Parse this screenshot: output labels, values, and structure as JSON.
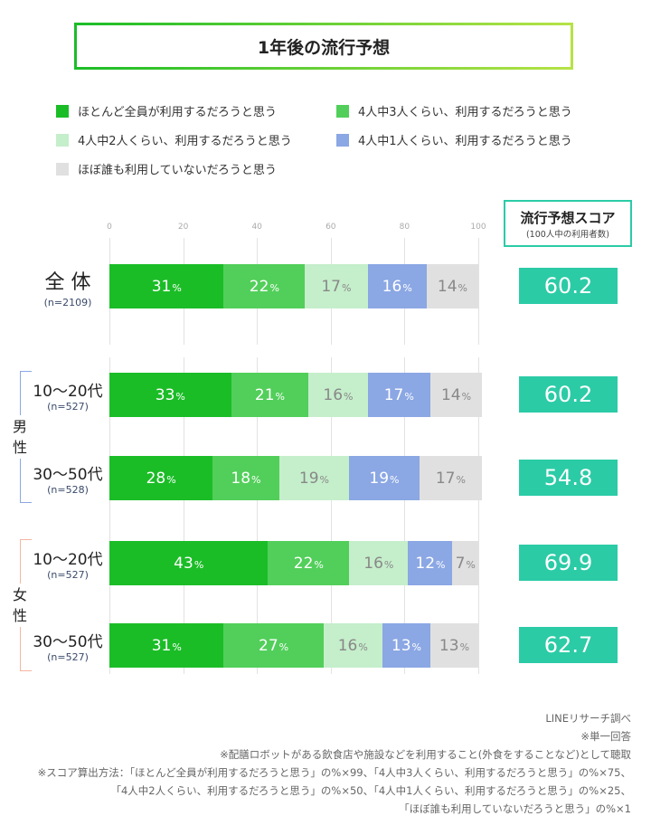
{
  "chart_data": {
    "type": "bar",
    "stacked": true,
    "orientation": "horizontal",
    "title": "1年後の流行予想",
    "xlim": [
      0,
      100
    ],
    "xticks": [
      0,
      20,
      40,
      60,
      80,
      100
    ],
    "grid": true,
    "legend_position": "top",
    "value_suffix": "%",
    "series": [
      {
        "name": "ほとんど全員が利用するだろうと思う",
        "color": "#1bbd27",
        "text_color": "#ffffff",
        "values": [
          31,
          33,
          28,
          43,
          31
        ]
      },
      {
        "name": "4人中3人くらい、利用するだろうと思う",
        "color": "#52cf5a",
        "text_color": "#ffffff",
        "values": [
          22,
          21,
          18,
          22,
          27
        ]
      },
      {
        "name": "4人中2人くらい、利用するだろうと思う",
        "color": "#c5eecb",
        "text_color": "#888888",
        "values": [
          17,
          16,
          19,
          16,
          16
        ]
      },
      {
        "name": "4人中1人くらい、利用するだろうと思う",
        "color": "#8ba7e4",
        "text_color": "#ffffff",
        "values": [
          16,
          17,
          19,
          12,
          13
        ]
      },
      {
        "name": "ほぼ誰も利用していないだろうと思う",
        "color": "#e0e0e0",
        "text_color": "#888888",
        "values": [
          14,
          14,
          17,
          7,
          13
        ]
      }
    ],
    "categories": [
      {
        "label": "全 体",
        "n": "(n=2109)"
      },
      {
        "label": "10〜20代",
        "n": "(n=527)"
      },
      {
        "label": "30〜50代",
        "n": "(n=528)"
      },
      {
        "label": "10〜20代",
        "n": "(n=527)"
      },
      {
        "label": "30〜50代",
        "n": "(n=527)"
      }
    ],
    "groups": [
      {
        "label": "男\n性",
        "color": "#8ba7e4"
      },
      {
        "label": "女\n性",
        "color": "#f5b4a0"
      }
    ],
    "score_header": {
      "title": "流行予想スコア",
      "subtitle": "(100人中の利用者数)"
    },
    "scores": [
      "60.2",
      "60.2",
      "54.8",
      "69.9",
      "62.7"
    ],
    "score_color": "#2bcba6"
  },
  "footnotes": [
    "LINEリサーチ調べ",
    "※単一回答",
    "※配膳ロボットがある飲食店や施設などを利用すること(外食をすることなど)として聴取",
    "※スコア算出方法：「ほとんど全員が利用するだろうと思う」の%×99、「4人中3人くらい、利用するだろうと思う」の%×75、",
    "「4人中2人くらい、利用するだろうと思う」の%×50、「4人中1人くらい、利用するだろうと思う」の%×25、",
    "「ほぼ誰も利用していないだろうと思う」の%×1"
  ]
}
